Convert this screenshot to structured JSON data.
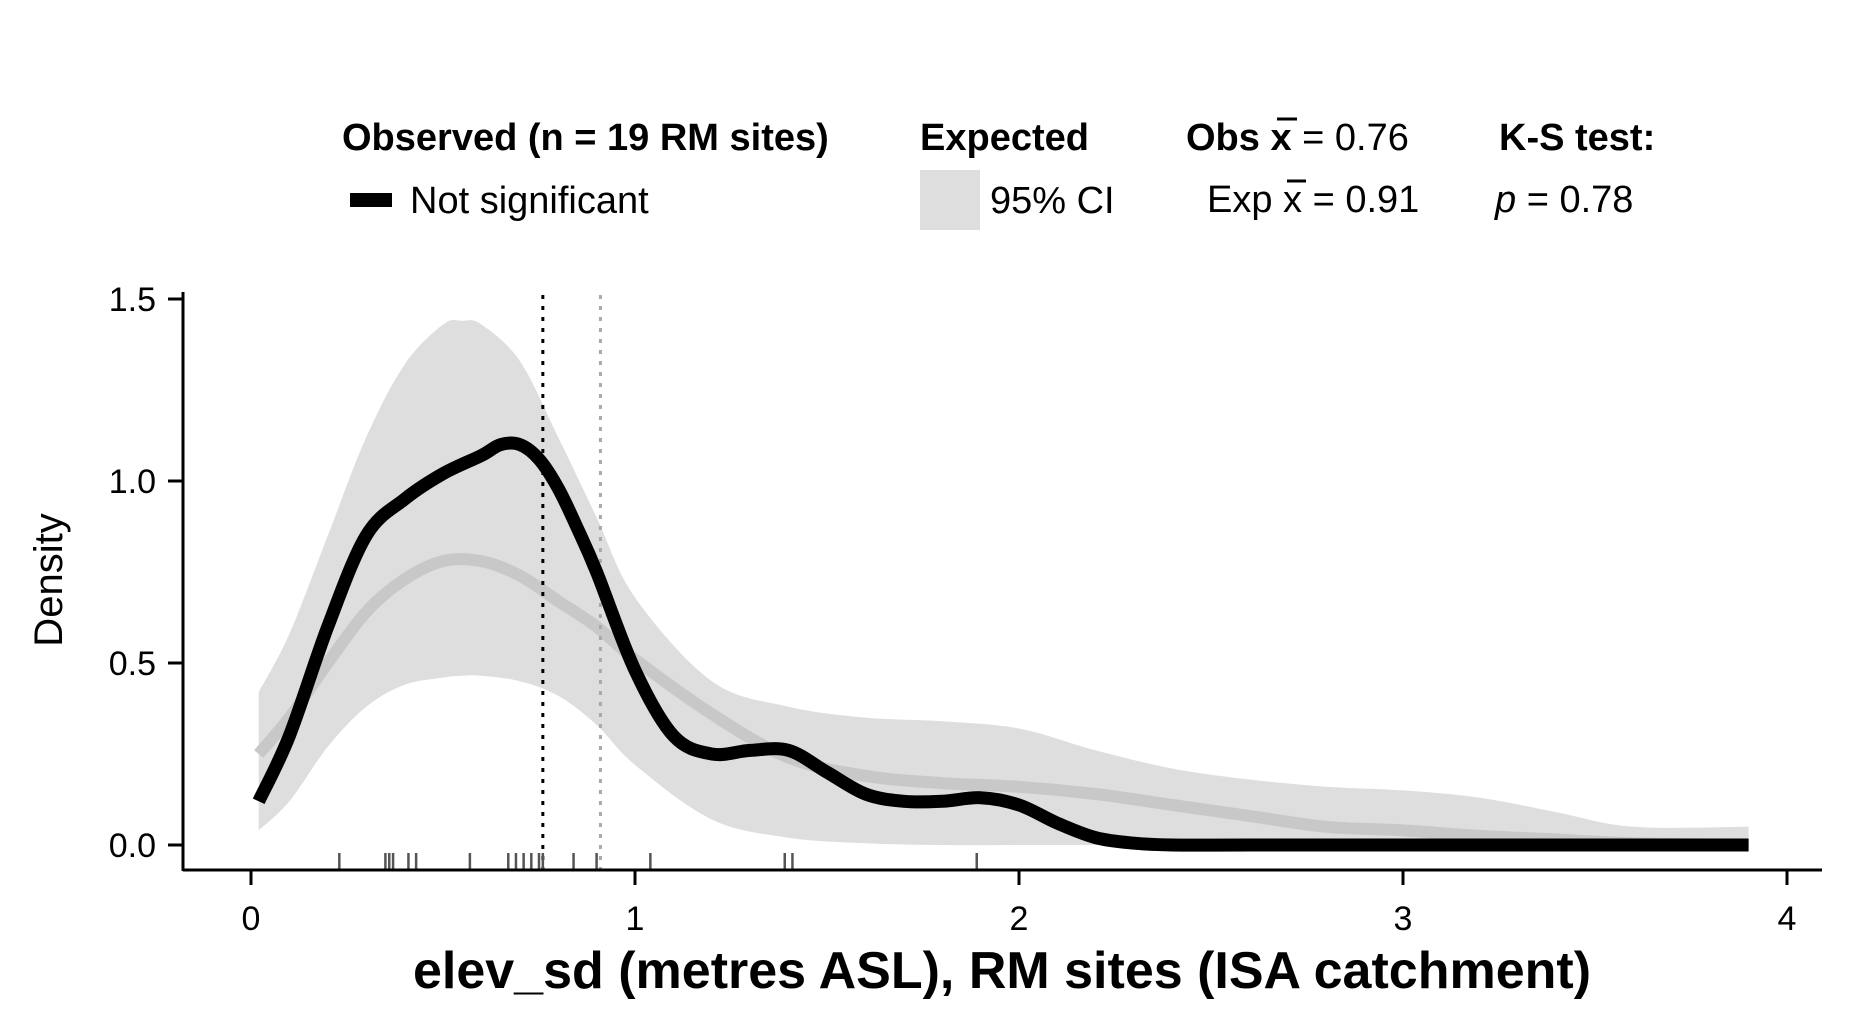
{
  "chart_data": {
    "type": "line",
    "xlabel": "elev_sd (metres ASL), RM sites (ISA catchment)",
    "ylabel": "Density",
    "xlim": [
      0,
      4
    ],
    "ylim": [
      0,
      1.5
    ],
    "x_ticks": [
      "0",
      "1",
      "2",
      "3",
      "4"
    ],
    "y_ticks": [
      "0.0",
      "0.5",
      "1.0",
      "1.5"
    ],
    "grid": false,
    "legend": {
      "observed_heading": "Observed (n = 19 RM sites)",
      "observed_item": "Not significant",
      "expected_heading": "Expected",
      "expected_item": "95% CI",
      "obs_mean_prefix": "Obs ",
      "obs_mean_value": " = 0.76",
      "exp_mean_prefix": "Exp ",
      "exp_mean_value": " = 0.91",
      "mean_symbol": "x",
      "ks_heading": "K-S test:",
      "ks_p_symbol": "p",
      "ks_p_value": " = 0.78"
    },
    "colors": {
      "observed": "#000000",
      "expected_band": "#dedede",
      "expected_line": "#c8c8c8",
      "expected_mean_line": "#a9a9a9"
    },
    "observed_mean": 0.76,
    "expected_mean": 0.91,
    "series": [
      {
        "name": "Not significant",
        "x": [
          0.02,
          0.1,
          0.2,
          0.3,
          0.4,
          0.5,
          0.6,
          0.65,
          0.7,
          0.75,
          0.8,
          0.85,
          0.9,
          1.0,
          1.1,
          1.2,
          1.3,
          1.4,
          1.5,
          1.6,
          1.7,
          1.8,
          1.9,
          2.0,
          2.1,
          2.2,
          2.3,
          2.4,
          2.6,
          3.0,
          3.5,
          3.9
        ],
        "y": [
          0.12,
          0.3,
          0.6,
          0.85,
          0.95,
          1.02,
          1.07,
          1.1,
          1.1,
          1.06,
          0.98,
          0.87,
          0.75,
          0.48,
          0.3,
          0.25,
          0.26,
          0.26,
          0.2,
          0.14,
          0.12,
          0.12,
          0.13,
          0.11,
          0.06,
          0.02,
          0.005,
          0.0,
          0.0,
          0.0,
          0.0,
          0.0
        ]
      },
      {
        "name": "Expected",
        "x": [
          0.02,
          0.1,
          0.2,
          0.3,
          0.4,
          0.5,
          0.6,
          0.7,
          0.8,
          0.9,
          1.0,
          1.2,
          1.4,
          1.6,
          1.8,
          2.0,
          2.2,
          2.4,
          2.6,
          2.8,
          3.0,
          3.2,
          3.4,
          3.6,
          3.9
        ],
        "y": [
          0.25,
          0.35,
          0.5,
          0.64,
          0.73,
          0.78,
          0.78,
          0.74,
          0.67,
          0.6,
          0.51,
          0.36,
          0.24,
          0.19,
          0.17,
          0.16,
          0.14,
          0.11,
          0.08,
          0.05,
          0.04,
          0.025,
          0.015,
          0.005,
          0.0
        ]
      }
    ],
    "expected_ci": {
      "x": [
        0.02,
        0.1,
        0.2,
        0.3,
        0.4,
        0.5,
        0.55,
        0.6,
        0.7,
        0.8,
        0.9,
        1.0,
        1.2,
        1.4,
        1.6,
        1.8,
        2.0,
        2.2,
        2.4,
        2.6,
        2.8,
        3.0,
        3.2,
        3.4,
        3.6,
        3.9
      ],
      "lower": [
        0.04,
        0.12,
        0.27,
        0.38,
        0.44,
        0.46,
        0.465,
        0.465,
        0.45,
        0.41,
        0.33,
        0.22,
        0.07,
        0.02,
        0.005,
        0.0,
        0.0,
        0.0,
        0.0,
        0.0,
        0.0,
        0.0,
        0.0,
        0.0,
        0.0,
        0.0
      ],
      "upper": [
        0.42,
        0.58,
        0.85,
        1.12,
        1.32,
        1.43,
        1.44,
        1.43,
        1.33,
        1.12,
        0.9,
        0.68,
        0.45,
        0.38,
        0.35,
        0.34,
        0.32,
        0.26,
        0.21,
        0.18,
        0.16,
        0.15,
        0.13,
        0.09,
        0.05,
        0.05
      ]
    },
    "rug": [
      0.23,
      0.35,
      0.36,
      0.37,
      0.41,
      0.43,
      0.57,
      0.67,
      0.69,
      0.71,
      0.73,
      0.75,
      0.76,
      0.84,
      0.9,
      1.04,
      1.39,
      1.41,
      1.89
    ]
  }
}
